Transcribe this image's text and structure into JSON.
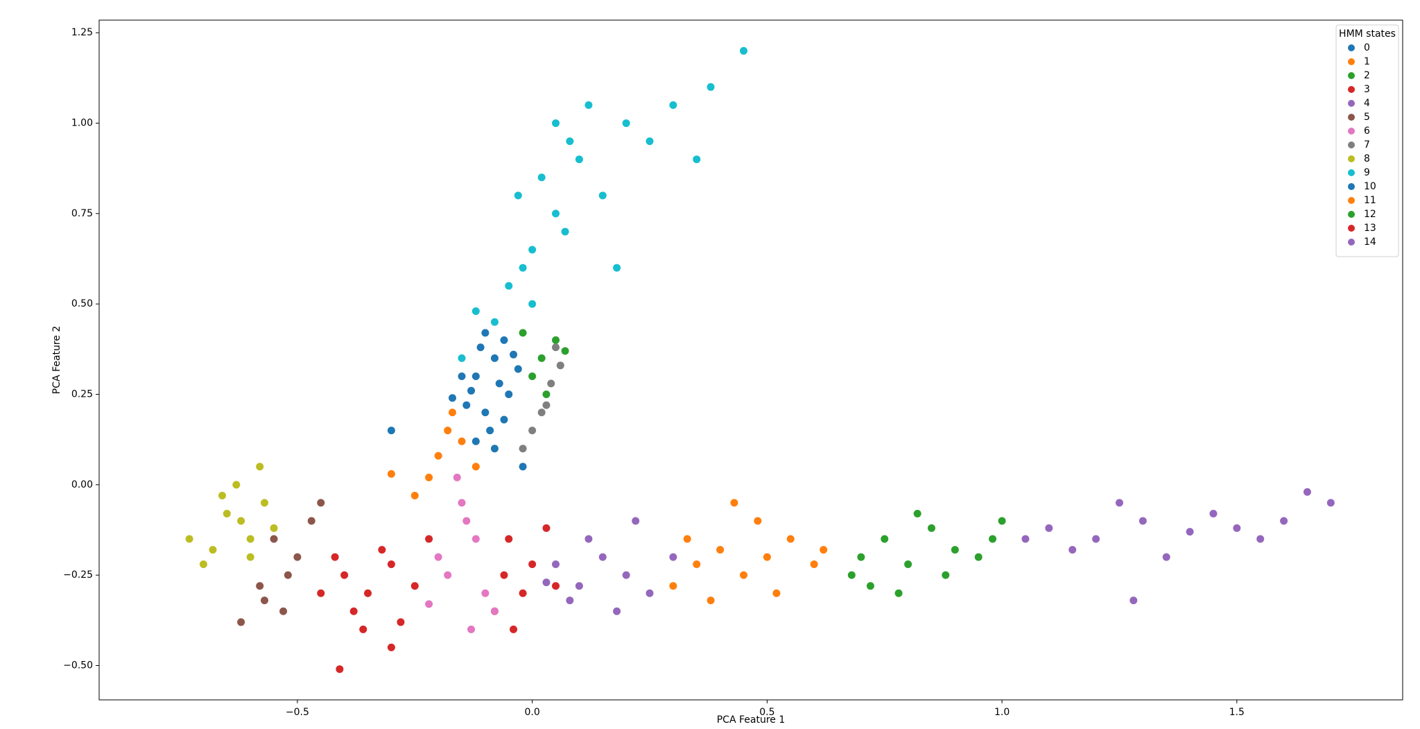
{
  "chart_data": {
    "type": "scatter",
    "x_label": "PCA Feature 1",
    "y_label": "PCA Feature 2",
    "xlim": [
      -0.922,
      1.853
    ],
    "ylim": [
      -0.595,
      1.285
    ],
    "xticks": [
      {
        "value": -0.5,
        "label": "−0.5"
      },
      {
        "value": 0,
        "label": "0.0"
      },
      {
        "value": 0.5,
        "label": "0.5"
      },
      {
        "value": 1,
        "label": "1.0"
      },
      {
        "value": 1.5,
        "label": "1.5"
      }
    ],
    "yticks": [
      {
        "value": -0.5,
        "label": "−0.50"
      },
      {
        "value": -0.25,
        "label": "−0.25"
      },
      {
        "value": 0,
        "label": "0.00"
      },
      {
        "value": 0.25,
        "label": "0.25"
      },
      {
        "value": 0.5,
        "label": "0.50"
      },
      {
        "value": 0.75,
        "label": "0.75"
      },
      {
        "value": 1,
        "label": "1.00"
      },
      {
        "value": 1.25,
        "label": "1.25"
      }
    ],
    "legend_title": "HMM states",
    "legend_position": "upper right",
    "series": [
      {
        "name": "0",
        "color": "#1f77b4",
        "x": [
          -0.12,
          -0.08,
          -0.05,
          -0.1,
          -0.06,
          -0.14,
          -0.03,
          -0.09,
          -0.11,
          -0.07
        ],
        "y": [
          0.3,
          0.35,
          0.25,
          0.2,
          0.4,
          0.22,
          0.32,
          0.15,
          0.38,
          0.28
        ]
      },
      {
        "name": "1",
        "color": "#ff7f0e",
        "x": [
          -0.2,
          -0.18,
          -0.22,
          -0.15,
          -0.12,
          -0.25,
          -0.17,
          -0.3
        ],
        "y": [
          0.08,
          0.15,
          0.02,
          0.12,
          0.05,
          -0.03,
          0.2,
          0.03
        ]
      },
      {
        "name": "2",
        "color": "#2ca02c",
        "x": [
          0.02,
          0.05,
          0.0,
          0.03,
          0.07,
          -0.02
        ],
        "y": [
          0.35,
          0.4,
          0.3,
          0.25,
          0.37,
          0.42
        ]
      },
      {
        "name": "3",
        "color": "#d62728",
        "x": [
          -0.05,
          0.0,
          -0.02,
          0.03,
          -0.08,
          -0.04,
          0.05,
          -0.06
        ],
        "y": [
          -0.15,
          -0.22,
          -0.3,
          -0.12,
          -0.35,
          -0.4,
          -0.28,
          -0.25
        ]
      },
      {
        "name": "4",
        "color": "#9467bd",
        "x": [
          0.05,
          0.1,
          0.15,
          0.2,
          0.08,
          0.12,
          0.25,
          0.03,
          0.18,
          0.3,
          0.22
        ],
        "y": [
          -0.22,
          -0.28,
          -0.2,
          -0.25,
          -0.32,
          -0.15,
          -0.3,
          -0.27,
          -0.35,
          -0.2,
          -0.1
        ]
      },
      {
        "name": "5",
        "color": "#8c564b",
        "x": [
          -0.55,
          -0.5,
          -0.52,
          -0.47,
          -0.58,
          -0.45,
          -0.53,
          -0.62,
          -0.57
        ],
        "y": [
          -0.15,
          -0.2,
          -0.25,
          -0.1,
          -0.28,
          -0.05,
          -0.35,
          -0.38,
          -0.32
        ]
      },
      {
        "name": "6",
        "color": "#e377c2",
        "x": [
          -0.15,
          -0.12,
          -0.18,
          -0.1,
          -0.14,
          -0.2,
          -0.08,
          -0.16,
          -0.22,
          -0.13
        ],
        "y": [
          -0.05,
          -0.15,
          -0.25,
          -0.3,
          -0.1,
          -0.2,
          -0.35,
          0.02,
          -0.33,
          -0.4
        ]
      },
      {
        "name": "7",
        "color": "#7f7f7f",
        "x": [
          0.02,
          0.04,
          0.0,
          0.06,
          -0.02,
          0.03,
          0.05
        ],
        "y": [
          0.2,
          0.28,
          0.15,
          0.33,
          0.1,
          0.22,
          0.38
        ]
      },
      {
        "name": "8",
        "color": "#bcbd22",
        "x": [
          -0.62,
          -0.6,
          -0.65,
          -0.57,
          -0.68,
          -0.55,
          -0.63,
          -0.7,
          -0.6,
          -0.66,
          -0.58,
          -0.73
        ],
        "y": [
          -0.1,
          -0.15,
          -0.08,
          -0.05,
          -0.18,
          -0.12,
          0.0,
          -0.22,
          -0.2,
          -0.03,
          0.05,
          -0.15
        ]
      },
      {
        "name": "9",
        "color": "#17becf",
        "x": [
          -0.05,
          0.0,
          0.05,
          0.02,
          -0.02,
          0.1,
          0.08,
          0.15,
          0.2,
          0.12,
          0.0,
          -0.08,
          -0.12,
          0.25,
          0.3,
          0.45,
          0.38,
          0.07,
          -0.03,
          0.18,
          0.05,
          -0.15,
          0.35
        ],
        "y": [
          0.55,
          0.65,
          0.75,
          0.85,
          0.6,
          0.9,
          0.95,
          0.8,
          1.0,
          1.05,
          0.5,
          0.45,
          0.48,
          0.95,
          1.05,
          1.2,
          1.1,
          0.7,
          0.8,
          0.6,
          1.0,
          0.35,
          0.9
        ]
      },
      {
        "name": "10",
        "color": "#1f77b4",
        "x": [
          -0.13,
          -0.1,
          -0.06,
          -0.04,
          -0.15,
          -0.08,
          -0.3,
          -0.17,
          -0.02,
          -0.12
        ],
        "y": [
          0.26,
          0.42,
          0.18,
          0.36,
          0.3,
          0.1,
          0.15,
          0.24,
          0.05,
          0.12
        ]
      },
      {
        "name": "11",
        "color": "#ff7f0e",
        "x": [
          0.35,
          0.4,
          0.45,
          0.5,
          0.55,
          0.6,
          0.3,
          0.38,
          0.48,
          0.52,
          0.62,
          0.43,
          0.33
        ],
        "y": [
          -0.22,
          -0.18,
          -0.25,
          -0.2,
          -0.15,
          -0.22,
          -0.28,
          -0.32,
          -0.1,
          -0.3,
          -0.18,
          -0.05,
          -0.15
        ]
      },
      {
        "name": "12",
        "color": "#2ca02c",
        "x": [
          0.7,
          0.75,
          0.8,
          0.85,
          0.9,
          0.95,
          1.0,
          0.72,
          0.82,
          0.88,
          0.78,
          0.98,
          0.68
        ],
        "y": [
          -0.2,
          -0.15,
          -0.22,
          -0.12,
          -0.18,
          -0.2,
          -0.1,
          -0.28,
          -0.08,
          -0.25,
          -0.3,
          -0.15,
          -0.25
        ]
      },
      {
        "name": "13",
        "color": "#d62728",
        "x": [
          -0.4,
          -0.35,
          -0.3,
          -0.25,
          -0.38,
          -0.32,
          -0.28,
          -0.42,
          -0.22,
          -0.36,
          -0.45,
          -0.3,
          -0.41
        ],
        "y": [
          -0.25,
          -0.3,
          -0.22,
          -0.28,
          -0.35,
          -0.18,
          -0.38,
          -0.2,
          -0.15,
          -0.4,
          -0.3,
          -0.45,
          -0.51
        ]
      },
      {
        "name": "14",
        "color": "#9467bd",
        "x": [
          1.1,
          1.2,
          1.3,
          1.4,
          1.5,
          1.6,
          1.15,
          1.25,
          1.35,
          1.45,
          1.55,
          1.65,
          1.7,
          1.05,
          1.28
        ],
        "y": [
          -0.12,
          -0.15,
          -0.1,
          -0.13,
          -0.12,
          -0.1,
          -0.18,
          -0.05,
          -0.2,
          -0.08,
          -0.15,
          -0.02,
          -0.05,
          -0.15,
          -0.32
        ]
      }
    ]
  }
}
